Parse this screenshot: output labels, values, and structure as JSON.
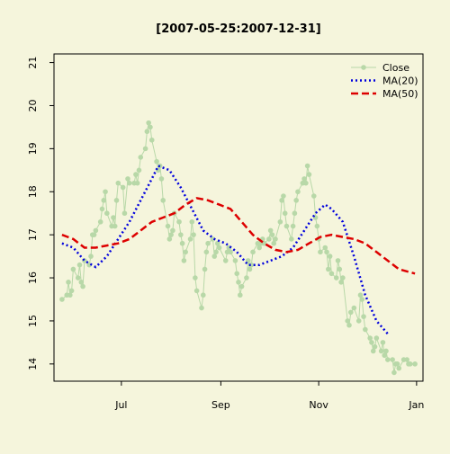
{
  "chart_data": {
    "type": "line",
    "title": "[2007-05-25:2007-12-31]",
    "xlabel": "",
    "ylabel": "",
    "x_range": [
      "2007-05-20",
      "2008-01-05"
    ],
    "ylim": [
      13.6,
      21.2
    ],
    "y_ticks": [
      14,
      15,
      16,
      17,
      18,
      19,
      20,
      21
    ],
    "x_ticks": [
      {
        "date": "2007-07-01",
        "label": "Jul"
      },
      {
        "date": "2007-09-01",
        "label": "Sep"
      },
      {
        "date": "2007-11-01",
        "label": "Nov"
      },
      {
        "date": "2008-01-01",
        "label": "Jan"
      }
    ],
    "legend": {
      "position": "top-right"
    },
    "grid": false,
    "colors": {
      "background": "#f5f5dc",
      "close": "#b8d8a8",
      "ma20": "#0000dd",
      "ma50": "#dd0000"
    },
    "series": [
      {
        "name": "Close",
        "style": "line-points",
        "color": "#b8d8a8",
        "points": [
          [
            "2007-05-25",
            15.5
          ],
          [
            "2007-05-28",
            15.6
          ],
          [
            "2007-05-29",
            15.9
          ],
          [
            "2007-05-30",
            15.6
          ],
          [
            "2007-05-31",
            15.7
          ],
          [
            "2007-06-01",
            16.2
          ],
          [
            "2007-06-04",
            16.0
          ],
          [
            "2007-06-05",
            16.3
          ],
          [
            "2007-06-06",
            15.9
          ],
          [
            "2007-06-07",
            15.8
          ],
          [
            "2007-06-08",
            16.4
          ],
          [
            "2007-06-11",
            16.3
          ],
          [
            "2007-06-12",
            16.5
          ],
          [
            "2007-06-13",
            17.0
          ],
          [
            "2007-06-14",
            17.0
          ],
          [
            "2007-06-15",
            17.1
          ],
          [
            "2007-06-18",
            17.3
          ],
          [
            "2007-06-19",
            17.6
          ],
          [
            "2007-06-20",
            17.8
          ],
          [
            "2007-06-21",
            18.0
          ],
          [
            "2007-06-22",
            17.5
          ],
          [
            "2007-06-25",
            17.2
          ],
          [
            "2007-06-26",
            17.4
          ],
          [
            "2007-06-27",
            17.2
          ],
          [
            "2007-06-28",
            17.8
          ],
          [
            "2007-06-29",
            18.2
          ],
          [
            "2007-07-02",
            18.1
          ],
          [
            "2007-07-03",
            17.5
          ],
          [
            "2007-07-05",
            18.3
          ],
          [
            "2007-07-06",
            18.2
          ],
          [
            "2007-07-09",
            18.2
          ],
          [
            "2007-07-10",
            18.4
          ],
          [
            "2007-07-11",
            18.2
          ],
          [
            "2007-07-12",
            18.5
          ],
          [
            "2007-07-13",
            18.8
          ],
          [
            "2007-07-16",
            19.0
          ],
          [
            "2007-07-17",
            19.4
          ],
          [
            "2007-07-18",
            19.6
          ],
          [
            "2007-07-19",
            19.5
          ],
          [
            "2007-07-20",
            19.2
          ],
          [
            "2007-07-23",
            18.7
          ],
          [
            "2007-07-24",
            18.5
          ],
          [
            "2007-07-25",
            18.6
          ],
          [
            "2007-07-26",
            18.3
          ],
          [
            "2007-07-27",
            17.8
          ],
          [
            "2007-07-30",
            17.2
          ],
          [
            "2007-07-31",
            16.9
          ],
          [
            "2007-08-01",
            17.0
          ],
          [
            "2007-08-02",
            17.1
          ],
          [
            "2007-08-03",
            17.5
          ],
          [
            "2007-08-06",
            17.3
          ],
          [
            "2007-08-07",
            17.0
          ],
          [
            "2007-08-08",
            16.8
          ],
          [
            "2007-08-09",
            16.4
          ],
          [
            "2007-08-10",
            16.6
          ],
          [
            "2007-08-13",
            16.9
          ],
          [
            "2007-08-14",
            17.3
          ],
          [
            "2007-08-15",
            17.0
          ],
          [
            "2007-08-16",
            16.0
          ],
          [
            "2007-08-17",
            15.7
          ],
          [
            "2007-08-20",
            15.3
          ],
          [
            "2007-08-21",
            15.6
          ],
          [
            "2007-08-22",
            16.2
          ],
          [
            "2007-08-23",
            16.6
          ],
          [
            "2007-08-24",
            16.8
          ],
          [
            "2007-08-27",
            16.9
          ],
          [
            "2007-08-28",
            16.5
          ],
          [
            "2007-08-29",
            16.6
          ],
          [
            "2007-08-30",
            16.8
          ],
          [
            "2007-08-31",
            16.7
          ],
          [
            "2007-09-04",
            16.4
          ],
          [
            "2007-09-05",
            16.6
          ],
          [
            "2007-09-06",
            16.7
          ],
          [
            "2007-09-07",
            16.6
          ],
          [
            "2007-09-10",
            16.4
          ],
          [
            "2007-09-11",
            16.1
          ],
          [
            "2007-09-12",
            15.9
          ],
          [
            "2007-09-13",
            15.6
          ],
          [
            "2007-09-14",
            15.8
          ],
          [
            "2007-09-17",
            16.0
          ],
          [
            "2007-09-18",
            16.4
          ],
          [
            "2007-09-19",
            16.2
          ],
          [
            "2007-09-20",
            16.3
          ],
          [
            "2007-09-21",
            16.6
          ],
          [
            "2007-09-24",
            16.8
          ],
          [
            "2007-09-25",
            16.7
          ],
          [
            "2007-09-26",
            16.8
          ],
          [
            "2007-09-27",
            16.9
          ],
          [
            "2007-09-28",
            16.8
          ],
          [
            "2007-10-01",
            16.9
          ],
          [
            "2007-10-02",
            17.1
          ],
          [
            "2007-10-03",
            17.0
          ],
          [
            "2007-10-04",
            16.8
          ],
          [
            "2007-10-05",
            16.9
          ],
          [
            "2007-10-08",
            17.3
          ],
          [
            "2007-10-09",
            17.8
          ],
          [
            "2007-10-10",
            17.9
          ],
          [
            "2007-10-11",
            17.5
          ],
          [
            "2007-10-12",
            17.2
          ],
          [
            "2007-10-15",
            16.9
          ],
          [
            "2007-10-16",
            17.2
          ],
          [
            "2007-10-17",
            17.5
          ],
          [
            "2007-10-18",
            17.8
          ],
          [
            "2007-10-19",
            18.0
          ],
          [
            "2007-10-22",
            18.2
          ],
          [
            "2007-10-23",
            18.3
          ],
          [
            "2007-10-24",
            18.2
          ],
          [
            "2007-10-25",
            18.6
          ],
          [
            "2007-10-26",
            18.4
          ],
          [
            "2007-10-29",
            17.9
          ],
          [
            "2007-10-30",
            17.4
          ],
          [
            "2007-10-31",
            17.2
          ],
          [
            "2007-11-01",
            16.9
          ],
          [
            "2007-11-02",
            16.6
          ],
          [
            "2007-11-05",
            16.7
          ],
          [
            "2007-11-06",
            16.6
          ],
          [
            "2007-11-07",
            16.2
          ],
          [
            "2007-11-08",
            16.5
          ],
          [
            "2007-11-09",
            16.1
          ],
          [
            "2007-11-12",
            16.0
          ],
          [
            "2007-11-13",
            16.4
          ],
          [
            "2007-11-14",
            16.2
          ],
          [
            "2007-11-15",
            15.9
          ],
          [
            "2007-11-16",
            16.0
          ],
          [
            "2007-11-19",
            15.0
          ],
          [
            "2007-11-20",
            14.9
          ],
          [
            "2007-11-21",
            15.2
          ],
          [
            "2007-11-23",
            15.3
          ],
          [
            "2007-11-26",
            15.0
          ],
          [
            "2007-11-27",
            15.6
          ],
          [
            "2007-11-28",
            15.5
          ],
          [
            "2007-11-29",
            15.1
          ],
          [
            "2007-11-30",
            14.8
          ],
          [
            "2007-12-03",
            14.6
          ],
          [
            "2007-12-04",
            14.5
          ],
          [
            "2007-12-05",
            14.3
          ],
          [
            "2007-12-06",
            14.4
          ],
          [
            "2007-12-07",
            14.6
          ],
          [
            "2007-12-10",
            14.3
          ],
          [
            "2007-12-11",
            14.5
          ],
          [
            "2007-12-12",
            14.2
          ],
          [
            "2007-12-13",
            14.3
          ],
          [
            "2007-12-14",
            14.1
          ],
          [
            "2007-12-17",
            14.1
          ],
          [
            "2007-12-18",
            13.8
          ],
          [
            "2007-12-19",
            14.0
          ],
          [
            "2007-12-20",
            14.0
          ],
          [
            "2007-12-21",
            13.9
          ],
          [
            "2007-12-24",
            14.1
          ],
          [
            "2007-12-26",
            14.1
          ],
          [
            "2007-12-27",
            14.0
          ],
          [
            "2007-12-28",
            14.0
          ],
          [
            "2007-12-31",
            14.0
          ]
        ]
      },
      {
        "name": "MA(20)",
        "style": "dotted",
        "color": "#0000dd",
        "points": [
          [
            "2007-05-25",
            16.8
          ],
          [
            "2007-06-01",
            16.7
          ],
          [
            "2007-06-08",
            16.4
          ],
          [
            "2007-06-15",
            16.25
          ],
          [
            "2007-06-22",
            16.5
          ],
          [
            "2007-06-29",
            16.9
          ],
          [
            "2007-07-06",
            17.3
          ],
          [
            "2007-07-13",
            17.8
          ],
          [
            "2007-07-20",
            18.3
          ],
          [
            "2007-07-24",
            18.6
          ],
          [
            "2007-07-31",
            18.5
          ],
          [
            "2007-08-07",
            18.1
          ],
          [
            "2007-08-14",
            17.6
          ],
          [
            "2007-08-21",
            17.1
          ],
          [
            "2007-08-28",
            16.9
          ],
          [
            "2007-09-04",
            16.8
          ],
          [
            "2007-09-11",
            16.6
          ],
          [
            "2007-09-18",
            16.3
          ],
          [
            "2007-09-25",
            16.3
          ],
          [
            "2007-10-02",
            16.4
          ],
          [
            "2007-10-09",
            16.5
          ],
          [
            "2007-10-16",
            16.7
          ],
          [
            "2007-10-23",
            17.1
          ],
          [
            "2007-10-30",
            17.5
          ],
          [
            "2007-11-05",
            17.7
          ],
          [
            "2007-11-09",
            17.6
          ],
          [
            "2007-11-16",
            17.3
          ],
          [
            "2007-11-23",
            16.5
          ],
          [
            "2007-11-30",
            15.6
          ],
          [
            "2007-12-07",
            15.0
          ],
          [
            "2007-12-14",
            14.7
          ]
        ]
      },
      {
        "name": "MA(50)",
        "style": "dashed",
        "color": "#dd0000",
        "points": [
          [
            "2007-05-25",
            17.0
          ],
          [
            "2007-06-01",
            16.9
          ],
          [
            "2007-06-08",
            16.7
          ],
          [
            "2007-06-15",
            16.7
          ],
          [
            "2007-06-22",
            16.75
          ],
          [
            "2007-06-29",
            16.8
          ],
          [
            "2007-07-06",
            16.9
          ],
          [
            "2007-07-13",
            17.1
          ],
          [
            "2007-07-20",
            17.3
          ],
          [
            "2007-07-27",
            17.4
          ],
          [
            "2007-08-03",
            17.5
          ],
          [
            "2007-08-10",
            17.7
          ],
          [
            "2007-08-17",
            17.85
          ],
          [
            "2007-08-24",
            17.8
          ],
          [
            "2007-08-31",
            17.7
          ],
          [
            "2007-09-07",
            17.6
          ],
          [
            "2007-09-14",
            17.3
          ],
          [
            "2007-09-21",
            17.0
          ],
          [
            "2007-09-28",
            16.8
          ],
          [
            "2007-10-05",
            16.65
          ],
          [
            "2007-10-12",
            16.6
          ],
          [
            "2007-10-19",
            16.65
          ],
          [
            "2007-10-26",
            16.8
          ],
          [
            "2007-11-02",
            16.95
          ],
          [
            "2007-11-09",
            17.0
          ],
          [
            "2007-11-16",
            16.95
          ],
          [
            "2007-11-23",
            16.9
          ],
          [
            "2007-11-30",
            16.8
          ],
          [
            "2007-12-07",
            16.6
          ],
          [
            "2007-12-14",
            16.4
          ],
          [
            "2007-12-21",
            16.2
          ],
          [
            "2007-12-31",
            16.1
          ]
        ]
      }
    ]
  }
}
